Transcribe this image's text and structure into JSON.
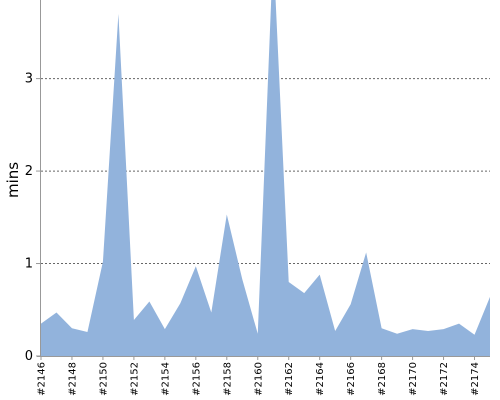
{
  "chart_data": {
    "type": "area",
    "xlabel": "",
    "ylabel": "mins",
    "ylim": [
      0,
      3.85
    ],
    "y_ticks": [
      0,
      1,
      2,
      3
    ],
    "grid": "horizontal-dashed",
    "fill_color": "#92b3dc",
    "grid_color": "#666666",
    "axis_color": "#999999",
    "x_tick_labels": [
      "#2146",
      "#2148",
      "#2150",
      "#2152",
      "#2154",
      "#2156",
      "#2158",
      "#2160",
      "#2162",
      "#2164",
      "#2166",
      "#2168",
      "#2170",
      "#2172",
      "#2174"
    ],
    "series": [
      {
        "x": [
          "#2146",
          "#2147",
          "#2148",
          "#2149",
          "#2150",
          "#2151",
          "#2152",
          "#2153",
          "#2154",
          "#2155",
          "#2156",
          "#2157",
          "#2158",
          "#2159",
          "#2160",
          "#2161",
          "#2162",
          "#2163",
          "#2164",
          "#2165",
          "#2166",
          "#2167",
          "#2168",
          "#2169",
          "#2170",
          "#2171",
          "#2172",
          "#2173",
          "#2174",
          "#2175"
        ],
        "values": [
          0.35,
          0.47,
          0.3,
          0.26,
          1.02,
          3.7,
          0.39,
          0.59,
          0.29,
          0.57,
          0.97,
          0.47,
          1.53,
          0.83,
          0.24,
          4.4,
          0.8,
          0.68,
          0.88,
          0.27,
          0.56,
          1.12,
          0.3,
          0.24,
          0.29,
          0.27,
          0.29,
          0.35,
          0.23,
          0.64
        ]
      }
    ]
  }
}
